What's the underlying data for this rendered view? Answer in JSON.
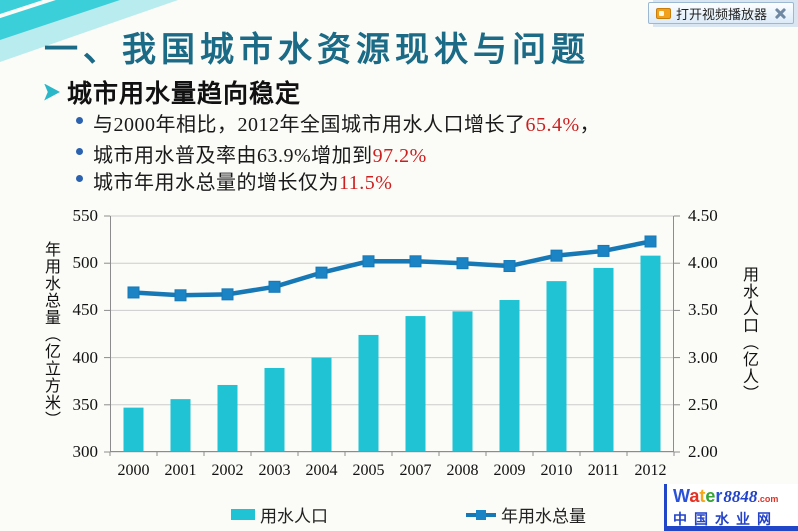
{
  "slide": {
    "title": "一、我国城市水资源现状与问题",
    "heading": "城市用水量趋向稳定",
    "bullets": [
      {
        "pre": "与2000年相比，2012年全国城市用水人口增长了",
        "highlight": "65.4%",
        "post": "，"
      },
      {
        "pre": "城市用水普及率由63.9%增加到",
        "highlight": "97.2%",
        "post": ""
      },
      {
        "pre": "城市年用水总量的增长仅为",
        "highlight": "11.5%",
        "post": ""
      }
    ]
  },
  "video_button": {
    "label": "打开视频播放器"
  },
  "logo": {
    "word_letters": [
      {
        "ch": "W",
        "color": "#2a52d8"
      },
      {
        "ch": "a",
        "color": "#e33124"
      },
      {
        "ch": "t",
        "color": "#f5a81c"
      },
      {
        "ch": "e",
        "color": "#36a335"
      },
      {
        "ch": "r",
        "color": "#2a52d8"
      }
    ],
    "number": "8848",
    "domain": ".com",
    "subtitle": "中国水业网"
  },
  "colors": {
    "title_teal": "#1b6a86",
    "accent_teal": "#2ab8c8",
    "highlight_red": "#cc2020",
    "bar_cyan": "#1fc3d3",
    "line_blue": "#1778b6",
    "marker_blue": "#1b84c4",
    "grid_gray": "#cccccc",
    "axis_gray": "#8c8c8c"
  },
  "chart_data": {
    "type": "bar",
    "subtype": "bar+line dual axis",
    "categories": [
      "2000",
      "2001",
      "2002",
      "2003",
      "2004",
      "2005",
      "2007",
      "2008",
      "2009",
      "2010",
      "2011",
      "2012"
    ],
    "series": [
      {
        "name": "用水人口",
        "type": "bar",
        "axis": "right",
        "values": [
          2.47,
          2.56,
          2.71,
          2.89,
          3.0,
          3.24,
          3.44,
          3.49,
          3.61,
          3.81,
          3.95,
          4.08
        ]
      },
      {
        "name": "年用水总量",
        "type": "line",
        "axis": "left",
        "values": [
          469,
          466,
          467,
          475,
          490,
          502,
          502,
          500,
          497,
          508,
          513,
          523
        ]
      }
    ],
    "left_axis": {
      "label": "年用水总量（亿立方米）",
      "min": 300,
      "max": 550,
      "ticks": [
        "300",
        "350",
        "400",
        "450",
        "500",
        "550"
      ]
    },
    "right_axis": {
      "label": "用水人口（亿人）",
      "min": 2.0,
      "max": 4.5,
      "ticks": [
        "2.00",
        "2.50",
        "3.00",
        "3.50",
        "4.00",
        "4.50"
      ]
    },
    "grid": true,
    "legend_position": "bottom"
  }
}
